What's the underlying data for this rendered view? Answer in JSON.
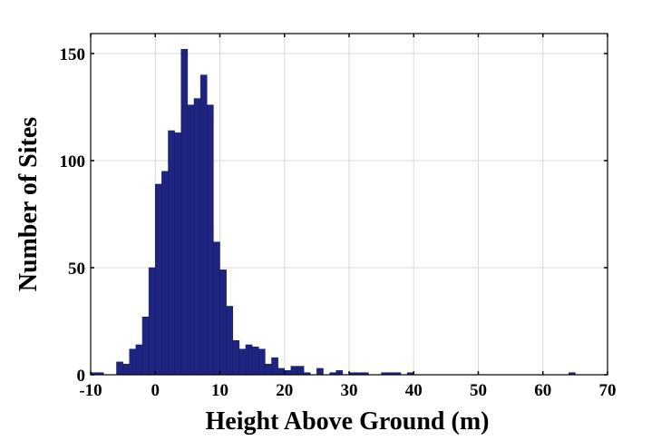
{
  "chart_data": {
    "type": "bar",
    "title": "",
    "xlabel": "Height Above Ground (m)",
    "ylabel": "Number of Sites",
    "xlim": [
      -10,
      70
    ],
    "ylim": [
      0,
      160
    ],
    "grid": true,
    "bar_color": "#1f2480",
    "grid_color": "#d8d8d8",
    "bin_width": 1,
    "x_ticks": [
      -10,
      0,
      10,
      20,
      30,
      40,
      50,
      60,
      70
    ],
    "x_tick_labels": [
      "-10",
      "0",
      "10",
      "20",
      "30",
      "40",
      "50",
      "60",
      "70"
    ],
    "y_ticks": [
      0,
      50,
      100,
      150
    ],
    "y_tick_labels": [
      "0",
      "50",
      "100",
      "150"
    ],
    "bin_starts": [
      -10,
      -9,
      -6,
      -5,
      -4,
      -3,
      -2,
      -1,
      0,
      1,
      2,
      3,
      4,
      5,
      6,
      7,
      8,
      9,
      10,
      11,
      12,
      13,
      14,
      15,
      16,
      17,
      18,
      19,
      20,
      21,
      22,
      23,
      25,
      27,
      28,
      30,
      31,
      32,
      35,
      36,
      37,
      39,
      64
    ],
    "values": [
      1,
      1,
      6,
      5,
      12,
      14,
      27,
      50,
      89,
      95,
      114,
      113,
      152,
      126,
      129,
      140,
      126,
      62,
      49,
      32,
      16,
      12,
      14,
      13,
      12,
      5,
      8,
      3,
      2,
      4,
      4,
      1,
      3,
      1,
      2,
      1,
      1,
      1,
      1,
      1,
      1,
      1,
      1
    ]
  }
}
